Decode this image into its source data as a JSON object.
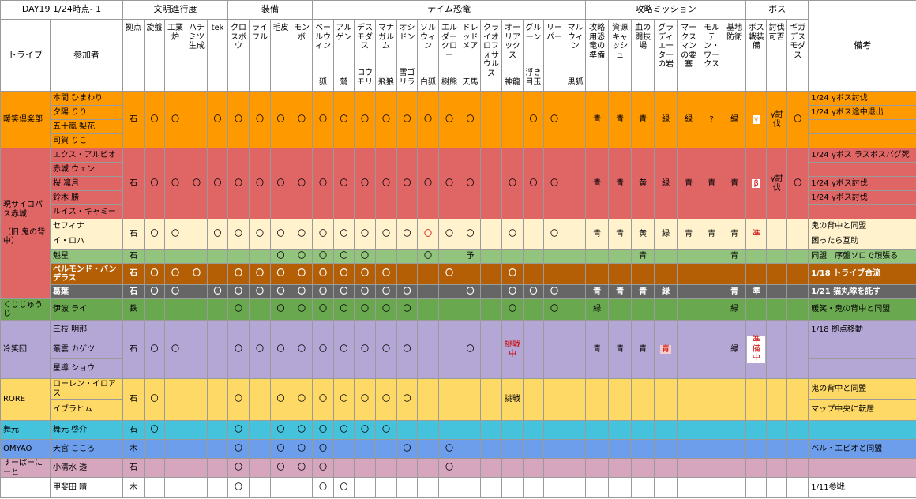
{
  "header": {
    "day": "DAY19 1/24時点- 1",
    "groups": [
      "文明進行度",
      "装備",
      "テイム恐竜",
      "攻略ミッション",
      "ボス"
    ],
    "tribe_label": "トライブ",
    "member_label": "参加者",
    "note_label": "備考",
    "columns": [
      {
        "name": "拠点"
      },
      {
        "name": "旋盤"
      },
      {
        "name": "工業炉"
      },
      {
        "name": "ハチミツ生成"
      },
      {
        "name": "tek"
      },
      {
        "name": "クロスボウ"
      },
      {
        "name": "ライフル"
      },
      {
        "name": "毛皮"
      },
      {
        "name": "モンボ"
      },
      {
        "name": "ベールウィン",
        "sub": "狐"
      },
      {
        "name": "アルゲン",
        "sub": "鷲"
      },
      {
        "name": "デスモダス",
        "sub": "コウモリ"
      },
      {
        "name": "マナガルム",
        "sub": "飛狼"
      },
      {
        "name": "オシドン",
        "sub": "雪ゴリラ"
      },
      {
        "name": "ソルウィン",
        "sub": "白狐"
      },
      {
        "name": "エルダークロー",
        "sub": "樹熊"
      },
      {
        "name": "ドレッドメア",
        "sub": "天馬"
      },
      {
        "name": "クライオロフォサウルス"
      },
      {
        "name": "オーリアックス",
        "sub": "神龍"
      },
      {
        "name": "グルーン",
        "sub": "浮き目玉"
      },
      {
        "name": "リーパー"
      },
      {
        "name": "マルウィン",
        "sub": "黒狐"
      },
      {
        "name": "攻略用恐竜の準備"
      },
      {
        "name": "資源キャッシュ"
      },
      {
        "name": "血の闘技場"
      },
      {
        "name": "グラディエーターの岩"
      },
      {
        "name": "マークスマンの要塞"
      },
      {
        "name": "モルテン・ワークス"
      },
      {
        "name": "基地防衛"
      },
      {
        "name": "ボス戦装備"
      },
      {
        "name": "討伐可否"
      },
      {
        "name": "ギガデスモダス"
      }
    ]
  },
  "tribes": [
    {
      "name": "暖笑倶楽部",
      "color": "#ff9900",
      "blocks": [
        {
          "color": "#ff9900",
          "members": [
            {
              "name": "本間 ひまわり",
              "note": "1/24 γボス討伐"
            },
            {
              "name": "夕陽 りり",
              "note": "1/24 γボス途中退出"
            },
            {
              "name": "五十嵐 梨花",
              "note": null
            },
            {
              "name": "司賀 りこ",
              "note": null
            }
          ],
          "cells": [
            "石",
            "〇",
            "〇",
            null,
            "〇",
            "〇",
            "〇",
            "〇",
            "〇",
            "〇",
            "〇",
            "〇",
            "〇",
            "〇",
            "〇",
            "〇",
            "〇",
            null,
            null,
            "〇",
            "〇",
            null,
            "青",
            "青",
            "青",
            "緑",
            "緑",
            "?",
            "緑",
            {
              "text": "γ",
              "color": "#e69138",
              "bg": "#ffffff"
            },
            "γ討伐",
            "〇"
          ]
        }
      ]
    },
    {
      "name": "現サイコパス赤城",
      "sub": "（旧 鬼の背中）",
      "color": "#e06666",
      "blocks": [
        {
          "color": "#e06666",
          "members": [
            {
              "name": "エクス・アルビオ",
              "note": "1/24 γボス ラスボスバグ死"
            },
            {
              "name": "赤城 ウェン",
              "note": null
            },
            {
              "name": "桜 凛月",
              "note": "1/24 γボス討伐"
            },
            {
              "name": "鈴木 勝",
              "note": "1/24 γボス討伐"
            },
            {
              "name": "ルイス・キャミー",
              "note": null
            }
          ],
          "cells": [
            "石",
            "〇",
            "〇",
            "〇",
            "〇",
            "〇",
            "〇",
            "〇",
            "〇",
            "〇",
            "〇",
            "〇",
            "〇",
            "〇",
            "〇",
            "〇",
            "〇",
            null,
            "〇",
            "〇",
            "〇",
            null,
            "青",
            "青",
            "黄",
            "緑",
            "青",
            "青",
            "青",
            {
              "text": "β",
              "color": "#cc0000",
              "bg": "#ffffff"
            },
            "γ討伐",
            "〇"
          ]
        },
        {
          "color": "#fff2cc",
          "members": [
            {
              "name": "セフィナ",
              "note": "鬼の背中と同盟"
            },
            {
              "name": "イ・ロハ",
              "note": "困ったら互助"
            }
          ],
          "cells": [
            "石",
            "〇",
            "〇",
            null,
            "〇",
            "〇",
            "〇",
            "〇",
            "〇",
            "〇",
            "〇",
            "〇",
            "〇",
            "〇",
            {
              "text": "〇",
              "color": "#cc0000"
            },
            "〇",
            "〇",
            null,
            "〇",
            null,
            "〇",
            null,
            "青",
            "青",
            "黄",
            "緑",
            "青",
            "青",
            "青",
            {
              "text": "準",
              "color": "#cc0000"
            },
            null,
            null
          ]
        },
        {
          "color": "#93c47d",
          "members": [
            {
              "name": "魁星",
              "note": "同盟　序盤ソロで頑張る"
            }
          ],
          "cells": [
            "石",
            null,
            null,
            null,
            null,
            null,
            null,
            "〇",
            "〇",
            "〇",
            "〇",
            "〇",
            null,
            null,
            "〇",
            null,
            "予",
            null,
            null,
            null,
            null,
            null,
            null,
            null,
            "青",
            null,
            null,
            null,
            "青",
            null,
            null,
            null
          ]
        },
        {
          "color": "#b45f06",
          "text_color": "#ffffff",
          "members": [
            {
              "name": "ベルモンド・バンデラス",
              "note": "1/18 トライブ合流"
            }
          ],
          "cells": [
            "石",
            "〇",
            "〇",
            "〇",
            null,
            "〇",
            "〇",
            "〇",
            "〇",
            "〇",
            "〇",
            "〇",
            "〇",
            null,
            null,
            "〇",
            null,
            null,
            "〇",
            null,
            null,
            null,
            null,
            null,
            null,
            null,
            null,
            null,
            null,
            null,
            null,
            null
          ]
        },
        {
          "color": "#666666",
          "text_color": "#ffffff",
          "members": [
            {
              "name": "葛葉",
              "note": "1/21 猫丸隊を託す"
            }
          ],
          "cells": [
            "石",
            "〇",
            "〇",
            null,
            "〇",
            "〇",
            "〇",
            "〇",
            "〇",
            "〇",
            "〇",
            "〇",
            "〇",
            "〇",
            null,
            null,
            "〇",
            null,
            "〇",
            "〇",
            "〇",
            null,
            "青",
            "青",
            "青",
            "緑",
            null,
            null,
            "青",
            "準",
            null,
            null
          ]
        }
      ]
    },
    {
      "name": "くじじゅうじ",
      "color": "#6aa84f",
      "blocks": [
        {
          "color": "#6aa84f",
          "members": [
            {
              "name": "伊波 ライ",
              "note": "暖笑・鬼の背中と同盟"
            }
          ],
          "cells": [
            "鉄",
            null,
            null,
            null,
            null,
            "〇",
            null,
            "〇",
            "〇",
            "〇",
            "〇",
            "〇",
            "〇",
            "〇",
            null,
            null,
            null,
            null,
            "〇",
            null,
            "〇",
            null,
            "緑",
            null,
            null,
            null,
            null,
            null,
            "緑",
            null,
            null,
            null
          ]
        }
      ]
    },
    {
      "name": "冷笑団",
      "color": "#b4a7d6",
      "blocks": [
        {
          "color": "#b4a7d6",
          "members": [
            {
              "name": "三枝 明那",
              "note": "1/18 拠点移動"
            },
            {
              "name": "叢雲 カゲツ",
              "note": null
            },
            {
              "name": "星導 ショウ",
              "note": null
            }
          ],
          "cells": [
            "石",
            "〇",
            "〇",
            null,
            null,
            "〇",
            "〇",
            "〇",
            "〇",
            "〇",
            "〇",
            "〇",
            "〇",
            "〇",
            null,
            null,
            "〇",
            null,
            {
              "text": "挑戦中",
              "color": "#cc0000"
            },
            null,
            null,
            null,
            "青",
            "青",
            "青",
            {
              "text": "青",
              "color": "#cc0000",
              "bg": "#f4cccc"
            },
            null,
            null,
            "緑",
            {
              "text": "準備中",
              "color": "#cc0000",
              "bg": "#ffffff"
            },
            null,
            null
          ]
        }
      ]
    },
    {
      "name": "RORE",
      "color": "#ffd966",
      "blocks": [
        {
          "color": "#ffd966",
          "members": [
            {
              "name": "ローレン・イロアス",
              "note": "鬼の背中と同盟"
            },
            {
              "name": "イブラヒム",
              "note": "マップ中央に転居"
            }
          ],
          "cells": [
            "石",
            "〇",
            null,
            null,
            null,
            "〇",
            null,
            "〇",
            "〇",
            "〇",
            "〇",
            "〇",
            "〇",
            "〇",
            null,
            null,
            null,
            null,
            "挑戦",
            null,
            null,
            null,
            null,
            null,
            null,
            null,
            null,
            null,
            null,
            null,
            null,
            null
          ]
        }
      ]
    },
    {
      "name": "舞元",
      "color": "#45c3dc",
      "blocks": [
        {
          "color": "#45c3dc",
          "members": [
            {
              "name": "舞元 啓介",
              "note": null
            }
          ],
          "cells": [
            "石",
            "〇",
            null,
            null,
            null,
            "〇",
            null,
            "〇",
            "〇",
            "〇",
            "〇",
            "〇",
            "〇",
            null,
            null,
            null,
            null,
            null,
            null,
            null,
            null,
            null,
            null,
            null,
            null,
            null,
            null,
            null,
            null,
            null,
            null,
            null
          ]
        }
      ]
    },
    {
      "name": "OMYAO",
      "color": "#6d9eeb",
      "blocks": [
        {
          "color": "#6d9eeb",
          "members": [
            {
              "name": "天宮 こころ",
              "note": "ベル・エビオと同盟"
            }
          ],
          "cells": [
            "木",
            null,
            null,
            null,
            null,
            "〇",
            null,
            "〇",
            "〇",
            "〇",
            null,
            null,
            null,
            "〇",
            null,
            "〇",
            null,
            null,
            null,
            null,
            null,
            null,
            null,
            null,
            null,
            null,
            null,
            null,
            null,
            null,
            null,
            null
          ]
        }
      ]
    },
    {
      "name": "すーぱーにーと",
      "color": "#d5a6bd",
      "blocks": [
        {
          "color": "#d5a6bd",
          "members": [
            {
              "name": "小清水 透",
              "note": null
            }
          ],
          "cells": [
            "石",
            null,
            null,
            null,
            null,
            "〇",
            null,
            "〇",
            "〇",
            "〇",
            null,
            null,
            null,
            null,
            null,
            "〇",
            null,
            null,
            null,
            null,
            null,
            null,
            null,
            null,
            null,
            null,
            null,
            null,
            null,
            null,
            null,
            null
          ]
        }
      ]
    },
    {
      "name": null,
      "color": "#ffffff",
      "blocks": [
        {
          "color": "#ffffff",
          "members": [
            {
              "name": "甲斐田 晴",
              "note": "1/11参戦"
            }
          ],
          "cells": [
            "木",
            null,
            null,
            null,
            null,
            "〇",
            null,
            null,
            null,
            "〇",
            "〇",
            null,
            null,
            null,
            null,
            null,
            null,
            null,
            null,
            null,
            null,
            null,
            null,
            null,
            null,
            null,
            null,
            null,
            null,
            null,
            null,
            null
          ]
        }
      ]
    }
  ]
}
